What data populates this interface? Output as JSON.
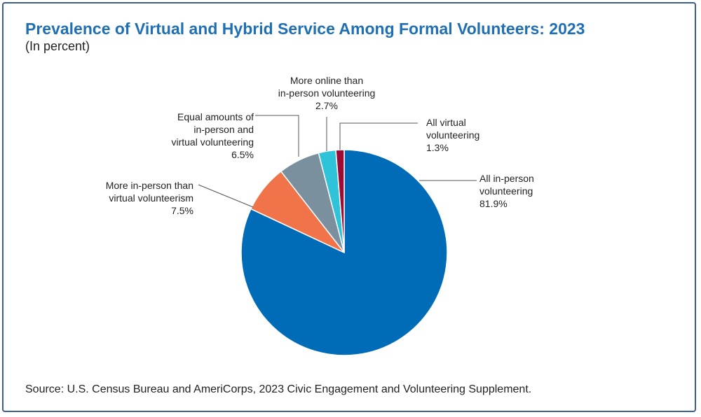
{
  "title": "Prevalence of Virtual and Hybrid Service Among Formal Volunteers: 2023",
  "subtitle": "(In percent)",
  "source": "Source: U.S. Census Bureau and AmeriCorps, 2023 Civic Engagement and Volunteering Supplement.",
  "chart_data": {
    "type": "pie",
    "title": "Prevalence of Virtual and Hybrid Service Among Formal Volunteers: 2023",
    "unit": "(In percent)",
    "slices": [
      {
        "label_lines": [
          "All in-person",
          "volunteering"
        ],
        "value_label": "81.9%",
        "value": 81.9,
        "color": "#006cb8"
      },
      {
        "label_lines": [
          "More in-person than",
          "virtual volunteerism"
        ],
        "value_label": "7.5%",
        "value": 7.5,
        "color": "#f1734a"
      },
      {
        "label_lines": [
          "Equal amounts of",
          "in-person and",
          "virtual volunteering"
        ],
        "value_label": "6.5%",
        "value": 6.5,
        "color": "#7b909e"
      },
      {
        "label_lines": [
          "More online than",
          "in-person volunteering"
        ],
        "value_label": "2.7%",
        "value": 2.7,
        "color": "#2fc3d9"
      },
      {
        "label_lines": [
          "All virtual",
          "volunteering"
        ],
        "value_label": "1.3%",
        "value": 1.3,
        "color": "#9b0b34"
      }
    ]
  }
}
